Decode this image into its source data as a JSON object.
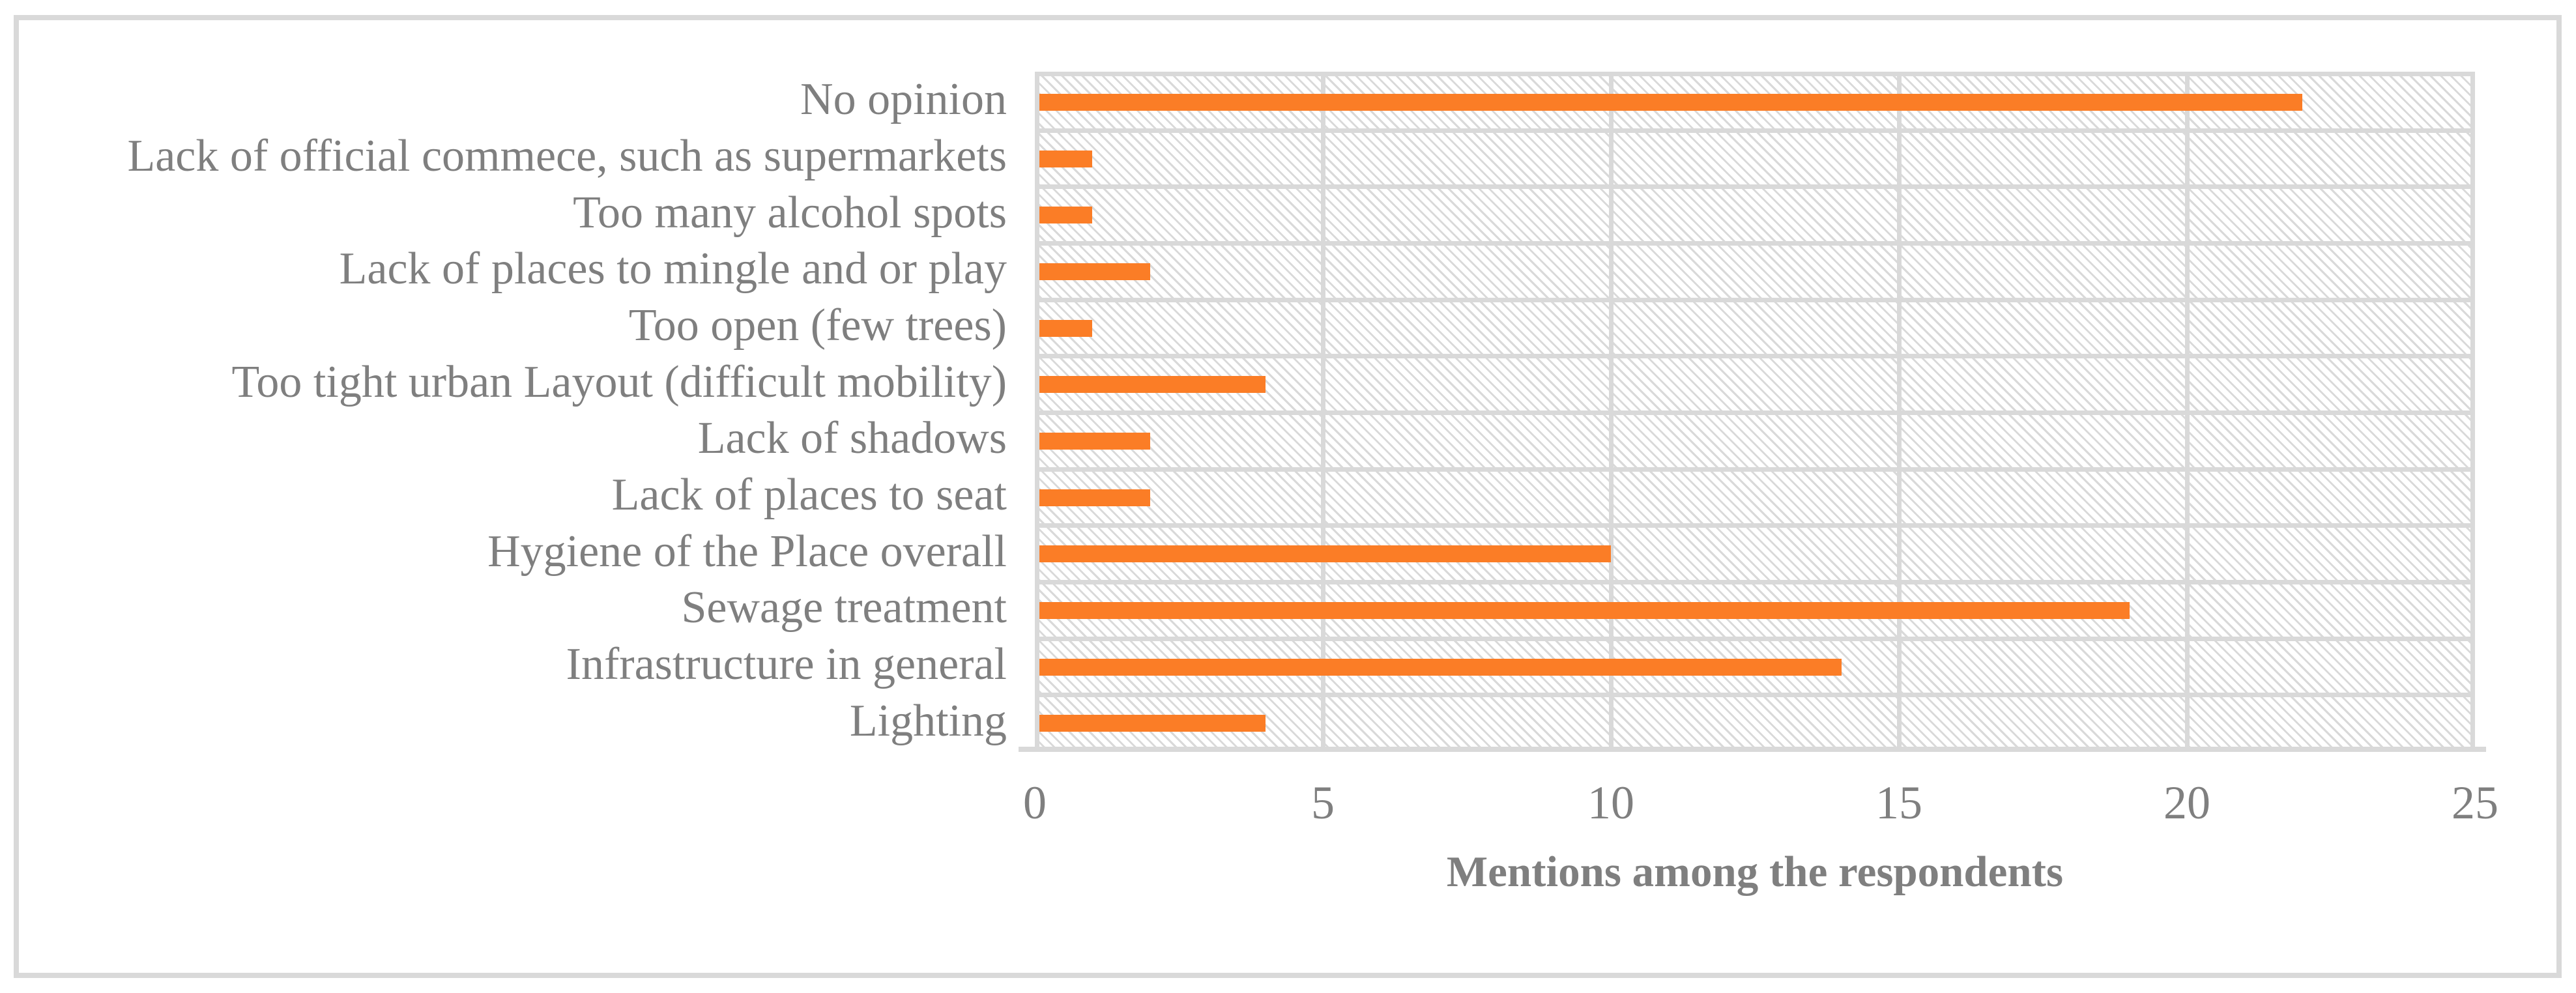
{
  "figure": {
    "background": "#FFFFFF",
    "border_color": "#D9D9D9"
  },
  "chart_data": {
    "type": "bar",
    "orientation": "horizontal",
    "title": "",
    "xlabel": "Mentions among the respondents",
    "ylabel": "",
    "categories": [
      "No opinion",
      "Lack of official commece, such as supermarkets",
      "Too many alcohol spots",
      "Lack of places to mingle and or play",
      "Too open (few trees)",
      "Too tight urban Layout (difficult mobility)",
      "Lack of shadows",
      "Lack of places to seat",
      "Hygiene of the Place overall",
      "Sewage treatment",
      "Infrastructure in general",
      "Lighting"
    ],
    "values": [
      22,
      1,
      1,
      2,
      1,
      4,
      2,
      2,
      10,
      19,
      14,
      4
    ],
    "xlim": [
      0,
      25
    ],
    "x_ticks": [
      0,
      5,
      10,
      15,
      20,
      25
    ],
    "grid": true,
    "legend": false,
    "bar_color": "#FB7D26",
    "gridline_color": "#D9D9D9",
    "text_color": "#7F7F7F",
    "plot_pattern": "light-downward-diagonal-hatch"
  }
}
